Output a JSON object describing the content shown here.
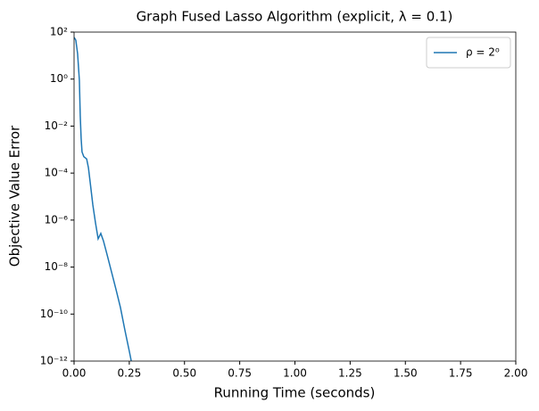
{
  "chart_data": {
    "type": "line",
    "title": "Graph Fused Lasso Algorithm (explicit, λ = 0.1)",
    "x_label": "Running Time (seconds)",
    "y_label": "Objective Value Error",
    "y_scale": "log",
    "legend_position": "upper right",
    "xlim": [
      0,
      2
    ],
    "xticks": [
      {
        "value": 0,
        "label": "0.00"
      },
      0.25,
      {
        "value": 0.5,
        "label": "0.50"
      },
      0.75,
      {
        "value": 1,
        "label": "1.00"
      },
      1.25,
      {
        "value": 1.5,
        "label": "1.50"
      },
      1.75,
      {
        "value": 2,
        "label": "2.00"
      }
    ],
    "ylim": [
      1e-12,
      100
    ],
    "yticks": [
      {
        "value": 1e-12,
        "label": "10⁻¹²"
      },
      {
        "value": 1e-10,
        "label": "10⁻¹⁰"
      },
      {
        "value": 1e-08,
        "label": "10⁻⁸"
      },
      {
        "value": 1e-06,
        "label": "10⁻⁶"
      },
      {
        "value": 0.0001,
        "label": "10⁻⁴"
      },
      {
        "value": 0.01,
        "label": "10⁻²"
      },
      {
        "value": 1,
        "label": "10⁰"
      },
      {
        "value": 100,
        "label": "10²"
      }
    ],
    "x": [
      0,
      0.008,
      0.016,
      0.024,
      0.028,
      0.032,
      0.036,
      0.044,
      0.057,
      0.065,
      0.073,
      0.085,
      0.097,
      0.109,
      0.121,
      0.133,
      0.149,
      0.17,
      0.19,
      0.21,
      0.23,
      0.251,
      0.259
    ],
    "series": [
      {
        "name": "ρ = 2⁰",
        "color": "#1f77b4",
        "values": [
          60,
          45,
          12,
          0.9,
          0.027,
          0.003,
          0.0008,
          0.0005,
          0.0004,
          0.00017,
          4e-05,
          4.4e-06,
          7.6e-07,
          1.6e-07,
          2.7e-07,
          1.3e-07,
          3.5e-08,
          6e-09,
          1.1e-09,
          1.9e-10,
          2.1e-11,
          2.4e-12,
          1e-12
        ]
      }
    ]
  }
}
